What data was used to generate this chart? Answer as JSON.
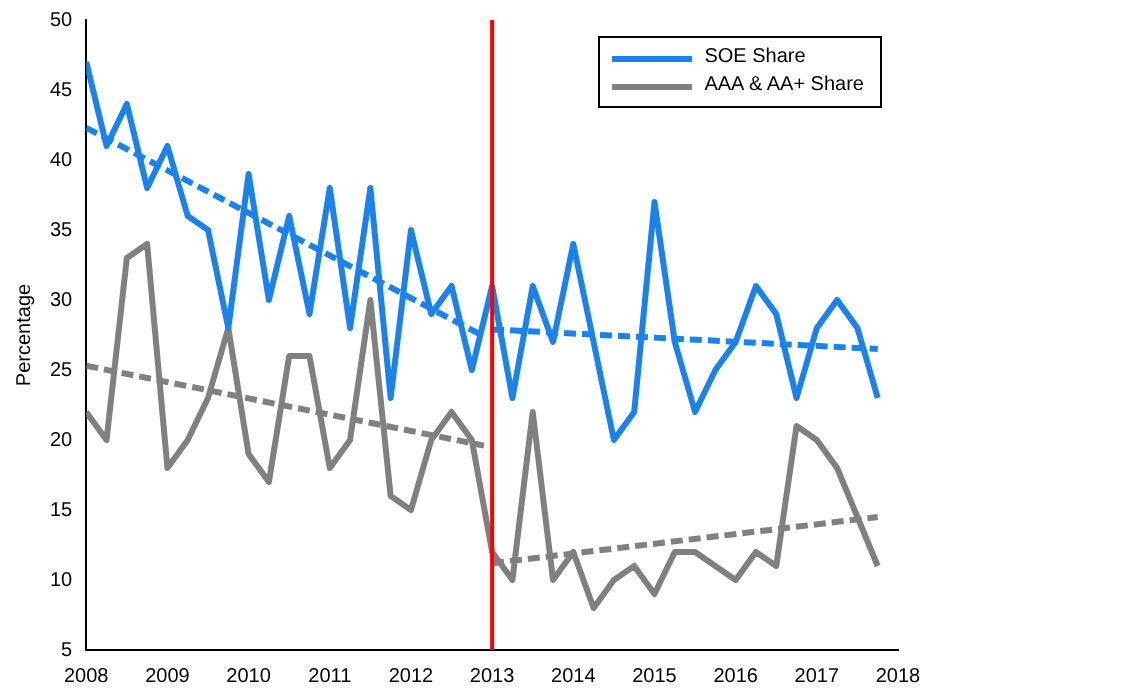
{
  "chart_data": {
    "type": "line",
    "ylabel": "Percentage",
    "x": [
      2008,
      2008.25,
      2008.5,
      2008.75,
      2009,
      2009.25,
      2009.5,
      2009.75,
      2010,
      2010.25,
      2010.5,
      2010.75,
      2011,
      2011.25,
      2011.5,
      2011.75,
      2012,
      2012.25,
      2012.5,
      2012.75,
      2013,
      2013.25,
      2013.5,
      2013.75,
      2014,
      2014.25,
      2014.5,
      2014.75,
      2015,
      2015.25,
      2015.5,
      2015.75,
      2016,
      2016.25,
      2016.5,
      2016.75,
      2017,
      2017.25,
      2017.5,
      2017.75
    ],
    "series": [
      {
        "name": "SOE Share",
        "color": "#1a82ec",
        "values": [
          47,
          41,
          44,
          38,
          41,
          36,
          35,
          28,
          39,
          30,
          36,
          29,
          38,
          28,
          38,
          23,
          35,
          29,
          31,
          25,
          31,
          23,
          31,
          27,
          34,
          27,
          20,
          22,
          37,
          27,
          22,
          25,
          27,
          31,
          29,
          23,
          28,
          30,
          28,
          23
        ]
      },
      {
        "name": "AAA & AA+ Share",
        "color": "#808080",
        "values": [
          22,
          20,
          33,
          34,
          18,
          20,
          23,
          28,
          19,
          17,
          26,
          26,
          18,
          20,
          30,
          16,
          15,
          20,
          22,
          20,
          12,
          10,
          22,
          10,
          12,
          8,
          10,
          11,
          9,
          12,
          12,
          11,
          10,
          12,
          11,
          21,
          20,
          18,
          14.5,
          11
        ]
      },
      {
        "type": "line",
        "color": "#1a82ec",
        "line_style": "dashed",
        "x": [
          2008,
          2012.9
        ],
        "values": [
          42.3,
          27.4
        ]
      },
      {
        "type": "line",
        "color": "#1a82ec",
        "line_style": "dashed",
        "x": [
          2013,
          2017.75
        ],
        "values": [
          27.9,
          26.5
        ]
      },
      {
        "type": "line",
        "color": "#808080",
        "line_style": "dashed",
        "x": [
          2008,
          2012.9
        ],
        "values": [
          25.3,
          19.6
        ]
      },
      {
        "type": "line",
        "color": "#808080",
        "line_style": "dashed",
        "x": [
          2013,
          2017.75
        ],
        "values": [
          11.2,
          14.5
        ]
      }
    ],
    "xlim": [
      2008,
      2018
    ],
    "xticks": [
      2008,
      2009,
      2010,
      2011,
      2012,
      2013,
      2014,
      2015,
      2016,
      2017,
      2018
    ],
    "ylim": [
      5,
      50
    ],
    "yticks": [
      5,
      10,
      15,
      20,
      25,
      30,
      35,
      40,
      45,
      50
    ],
    "ref_lines": [
      {
        "axis": "x",
        "value": 2013,
        "color": "#ff0000"
      }
    ],
    "grid": false,
    "legend": "top right",
    "marker": "none"
  }
}
